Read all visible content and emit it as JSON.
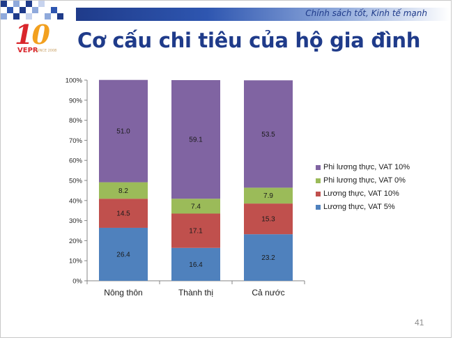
{
  "header": {
    "tagline": "Chính sách tốt, Kinh tế mạnh"
  },
  "logo": {
    "numeral_one": "1",
    "numeral_zero": "0",
    "name": "VEPR",
    "since": "SINCE 2008"
  },
  "slide": {
    "title": "Cơ cấu chi tiêu của hộ gia đình",
    "page_number": "41"
  },
  "colors": {
    "title": "#1f3b8a",
    "food_vat5": "#4f81bd",
    "food_vat10": "#c0504d",
    "nonfood_vat0": "#9bbb59",
    "nonfood_vat10": "#8064a2"
  },
  "chart_data": {
    "type": "bar",
    "stacked": true,
    "percent_stacked": true,
    "categories": [
      "Nông thôn",
      "Thành thị",
      "Cả nước"
    ],
    "y_tick_labels": [
      "0%",
      "10%",
      "20%",
      "30%",
      "40%",
      "50%",
      "60%",
      "70%",
      "80%",
      "90%",
      "100%"
    ],
    "ylim": [
      0,
      100
    ],
    "grid": false,
    "legend_position": "right",
    "series": [
      {
        "name": "Lương thực, VAT 5%",
        "values": [
          26.4,
          16.4,
          23.2
        ],
        "labels": [
          "26.4",
          "16.4",
          "23.2"
        ],
        "color": "#4f81bd"
      },
      {
        "name": "Lương thực, VAT 10%",
        "values": [
          14.5,
          17.1,
          15.3
        ],
        "labels": [
          "14.5",
          "17.1",
          "15.3"
        ],
        "color": "#c0504d"
      },
      {
        "name": "Phi lương thực, VAT 0%",
        "values": [
          8.2,
          7.4,
          7.9
        ],
        "labels": [
          "8.2",
          "7.4",
          "7.9"
        ],
        "color": "#9bbb59"
      },
      {
        "name": "Phi lương thực, VAT 10%",
        "values": [
          51.0,
          59.1,
          53.5
        ],
        "labels": [
          "51.0",
          "59.1",
          "53.5"
        ],
        "color": "#8064a2"
      }
    ]
  }
}
